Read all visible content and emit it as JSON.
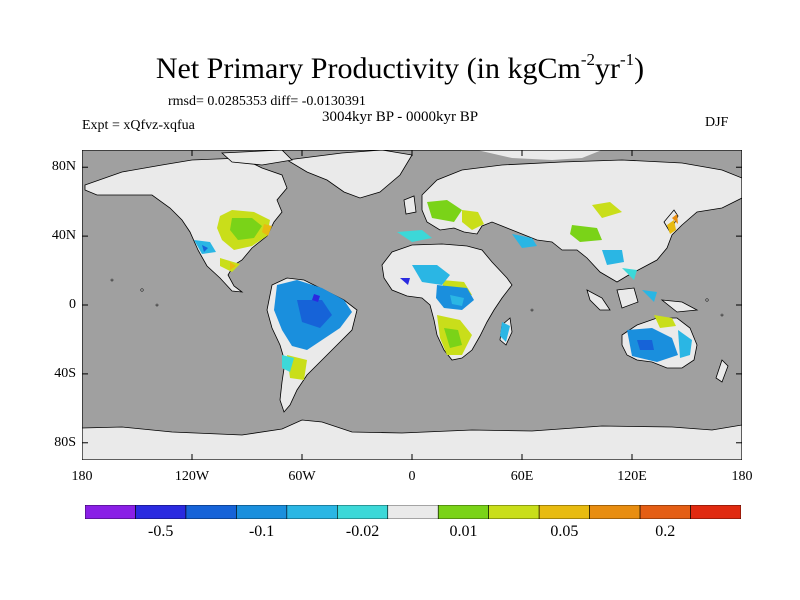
{
  "title": {
    "main": "Net Primary Productivity (in kgCm",
    "sup1": "-2",
    "mid": "yr",
    "sup2": "-1",
    "close": ")"
  },
  "stats": "rmsd= 0.0285353 diff= -0.0130391",
  "period": "3004kyr BP - 0000kyr BP",
  "experiment": "Expt = xQfvz-xqfua",
  "season": "DJF",
  "lat_ticks": [
    {
      "label": "80N",
      "value": 80
    },
    {
      "label": "40N",
      "value": 40
    },
    {
      "label": "0",
      "value": 0
    },
    {
      "label": "40S",
      "value": -40
    },
    {
      "label": "80S",
      "value": -80
    }
  ],
  "lon_ticks": [
    {
      "label": "180",
      "value": -180
    },
    {
      "label": "120W",
      "value": -120
    },
    {
      "label": "60W",
      "value": -60
    },
    {
      "label": "0",
      "value": 0
    },
    {
      "label": "60E",
      "value": 60
    },
    {
      "label": "120E",
      "value": 120
    },
    {
      "label": "180",
      "value": 180
    }
  ],
  "colorbar": {
    "colors": [
      "#8a1fe6",
      "#2a2ae0",
      "#1663d8",
      "#1a8fdd",
      "#2ab6e4",
      "#3cd8d8",
      "#eaeaea",
      "#7ad318",
      "#c9de1a",
      "#e8bb10",
      "#e88d10",
      "#e45e14",
      "#e02a10"
    ],
    "labels": [
      {
        "text": "-0.5",
        "boundary": 1
      },
      {
        "text": "-0.1",
        "boundary": 3
      },
      {
        "text": "-0.02",
        "boundary": 5
      },
      {
        "text": "0.01",
        "boundary": 7
      },
      {
        "text": "0.05",
        "boundary": 9
      },
      {
        "text": "0.2",
        "boundary": 11
      }
    ]
  },
  "colors": {
    "ocean": "#a0a0a0",
    "land_neutral": "#eaeaea",
    "coast": "#000000"
  }
}
